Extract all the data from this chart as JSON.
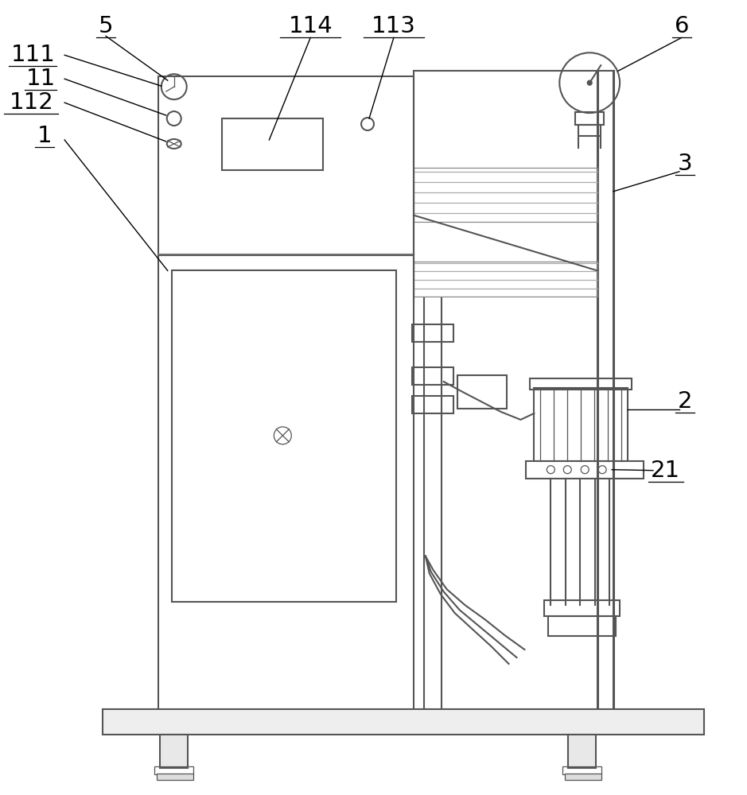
{
  "bg_color": "#ffffff",
  "lc": "#555555",
  "lc_dark": "#222222",
  "lc_light": "#999999"
}
